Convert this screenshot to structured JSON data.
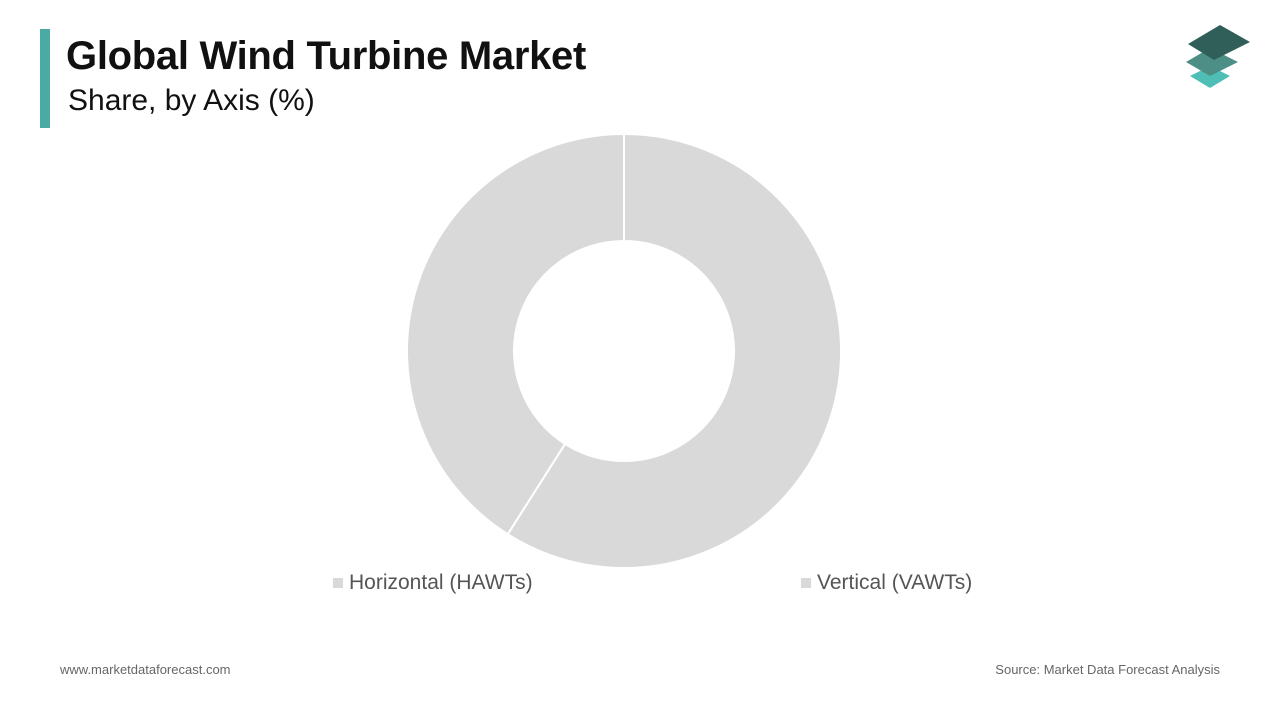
{
  "header": {
    "title": "Global Wind Turbine Market",
    "subtitle": "Share, by Axis (%)"
  },
  "logo": {
    "icon": "stacked-layers-icon",
    "colors": [
      "#2f5f58",
      "#4d8f86",
      "#4fbfb6"
    ]
  },
  "chart_data": {
    "type": "pie",
    "variant": "donut",
    "categories": [
      "Horizontal (HAWTs)",
      "Vertical (VAWTs)"
    ],
    "values": [
      59,
      41
    ],
    "colors": [
      "#d9d9d9",
      "#d9d9d9"
    ],
    "legend_placement": "bottom"
  },
  "footer": {
    "website": "www.marketdataforecast.com",
    "source": "Source: Market Data Forecast Analysis"
  },
  "colors": {
    "accent": "#4aaba5",
    "slice": "#d9d9d9"
  }
}
